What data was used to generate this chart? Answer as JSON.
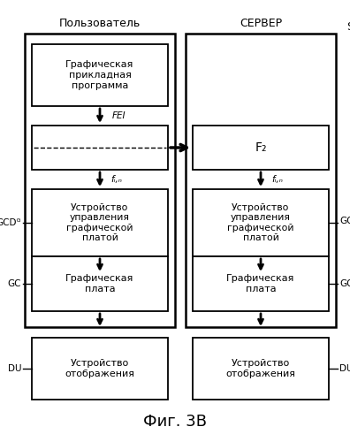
{
  "title": "Фиг. 3В",
  "background": "#ffffff",
  "left_column_label": "Пользователь",
  "right_column_label": "СЕРВЕР",
  "server_label": "S"
}
